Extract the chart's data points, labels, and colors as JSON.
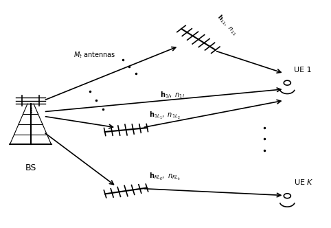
{
  "bg_color": "#ffffff",
  "fig_width": 4.82,
  "fig_height": 3.32,
  "dpi": 100,
  "bs_label": "BS",
  "mt_label": "$M_t$ antennas",
  "ue1_label": "UE 1",
  "uek_label": "UE $K$",
  "arrow_color": "#000000",
  "text_color": "#000000"
}
